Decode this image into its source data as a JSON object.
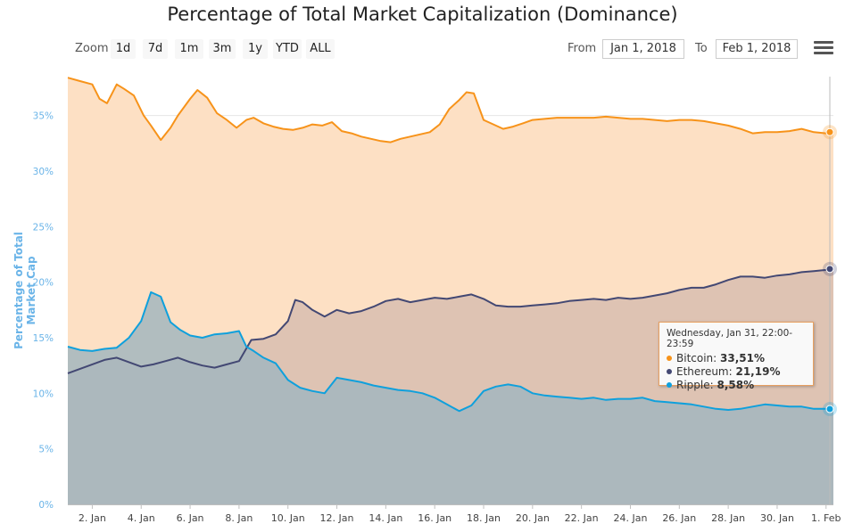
{
  "title": "Percentage of Total Market Capitalization (Dominance)",
  "zoom": {
    "label": "Zoom",
    "buttons": [
      "1d",
      "7d",
      "1m",
      "3m",
      "1y",
      "YTD",
      "ALL"
    ]
  },
  "range": {
    "from_label": "From",
    "from_value": "Jan 1, 2018",
    "to_label": "To",
    "to_value": "Feb 1, 2018"
  },
  "menu_icon": "hamburger-menu-icon",
  "tooltip": {
    "title": "Wednesday, Jan 31, 22:00-23:59",
    "rows": [
      {
        "name": "Bitcoin",
        "value": "33,51%"
      },
      {
        "name": "Ethereum",
        "value": "21,19%"
      },
      {
        "name": "Ripple",
        "value": "8,58%"
      }
    ]
  },
  "colors": {
    "bitcoin": "#f7931a",
    "ethereum": "#434873",
    "ripple": "#0fa0dc",
    "bitcoin_fill": "#fde0c4",
    "ethereum_fill": "#d8bdb0",
    "ripple_fill": "#a3b6be"
  },
  "chart_data": {
    "type": "area",
    "title": "Percentage of Total Market Capitalization (Dominance)",
    "ylabel": "Percentage of Total Market Cap",
    "xlabel": "",
    "ylim": [
      0,
      38.5
    ],
    "xlim": [
      1,
      32.3
    ],
    "yticks": [
      0,
      5,
      10,
      15,
      20,
      25,
      30,
      35
    ],
    "ytick_labels": [
      "0%",
      "5%",
      "10%",
      "15%",
      "20%",
      "25%",
      "30%",
      "35%"
    ],
    "xticks": [
      2,
      4,
      6,
      8,
      10,
      12,
      14,
      16,
      18,
      20,
      22,
      24,
      26,
      28,
      30,
      32
    ],
    "xtick_labels": [
      "2. Jan",
      "4. Jan",
      "6. Jan",
      "8. Jan",
      "10. Jan",
      "12. Jan",
      "14. Jan",
      "16. Jan",
      "18. Jan",
      "20. Jan",
      "22. Jan",
      "24. Jan",
      "26. Jan",
      "28. Jan",
      "30. Jan",
      "1. Feb"
    ],
    "grid": true,
    "legend": "none",
    "series": [
      {
        "name": "Bitcoin",
        "x": [
          1,
          1.5,
          2,
          2.3,
          2.6,
          3,
          3.3,
          3.7,
          4.1,
          4.4,
          4.8,
          5.2,
          5.5,
          6,
          6.3,
          6.7,
          7.1,
          7.5,
          7.9,
          8.3,
          8.6,
          9,
          9.4,
          9.8,
          10.2,
          10.6,
          11,
          11.4,
          11.8,
          12.2,
          12.6,
          13,
          13.4,
          13.8,
          14.2,
          14.6,
          15,
          15.4,
          15.8,
          16.2,
          16.6,
          17,
          17.3,
          17.6,
          18,
          18.4,
          18.8,
          19.2,
          19.6,
          20,
          20.5,
          21,
          21.5,
          22,
          22.5,
          23,
          23.5,
          24,
          24.5,
          25,
          25.5,
          26,
          26.5,
          27,
          27.5,
          28,
          28.5,
          29,
          29.5,
          30,
          30.5,
          31,
          31.5,
          32,
          32.3
        ],
        "y": [
          38.4,
          38.1,
          37.8,
          36.5,
          36.1,
          37.8,
          37.4,
          36.8,
          35.0,
          34.1,
          32.8,
          33.9,
          35.0,
          36.5,
          37.3,
          36.6,
          35.2,
          34.6,
          33.9,
          34.6,
          34.8,
          34.3,
          34.0,
          33.8,
          33.7,
          33.9,
          34.2,
          34.1,
          34.4,
          33.6,
          33.4,
          33.1,
          32.9,
          32.7,
          32.6,
          32.9,
          33.1,
          33.3,
          33.5,
          34.2,
          35.6,
          36.4,
          37.1,
          37.0,
          34.6,
          34.2,
          33.8,
          34.0,
          34.3,
          34.6,
          34.7,
          34.8,
          34.8,
          34.8,
          34.8,
          34.9,
          34.8,
          34.7,
          34.7,
          34.6,
          34.5,
          34.6,
          34.6,
          34.5,
          34.3,
          34.1,
          33.8,
          33.4,
          33.5,
          33.5,
          33.6,
          33.8,
          33.5,
          33.4,
          33.51
        ]
      },
      {
        "name": "Ethereum",
        "x": [
          1,
          1.5,
          2,
          2.5,
          3,
          3.5,
          4,
          4.5,
          5,
          5.5,
          6,
          6.5,
          7,
          7.5,
          8,
          8.5,
          9,
          9.5,
          10,
          10.3,
          10.6,
          11,
          11.5,
          12,
          12.5,
          13,
          13.5,
          14,
          14.5,
          15,
          15.5,
          16,
          16.5,
          17,
          17.5,
          18,
          18.5,
          19,
          19.5,
          20,
          20.5,
          21,
          21.5,
          22,
          22.5,
          23,
          23.5,
          24,
          24.5,
          25,
          25.5,
          26,
          26.5,
          27,
          27.5,
          28,
          28.5,
          29,
          29.5,
          30,
          30.5,
          31,
          31.5,
          32,
          32.3
        ],
        "y": [
          11.8,
          12.2,
          12.6,
          13.0,
          13.2,
          12.8,
          12.4,
          12.6,
          12.9,
          13.2,
          12.8,
          12.5,
          12.3,
          12.6,
          12.9,
          14.8,
          14.9,
          15.3,
          16.5,
          18.4,
          18.2,
          17.5,
          16.9,
          17.5,
          17.2,
          17.4,
          17.8,
          18.3,
          18.5,
          18.2,
          18.4,
          18.6,
          18.5,
          18.7,
          18.9,
          18.5,
          17.9,
          17.8,
          17.8,
          17.9,
          18.0,
          18.1,
          18.3,
          18.4,
          18.5,
          18.4,
          18.6,
          18.5,
          18.6,
          18.8,
          19.0,
          19.3,
          19.5,
          19.5,
          19.8,
          20.2,
          20.5,
          20.5,
          20.4,
          20.6,
          20.7,
          20.9,
          21.0,
          21.1,
          21.19
        ]
      },
      {
        "name": "Ripple",
        "x": [
          1,
          1.5,
          2,
          2.5,
          3,
          3.5,
          4,
          4.4,
          4.8,
          5.2,
          5.6,
          6,
          6.5,
          7,
          7.5,
          8,
          8.3,
          8.6,
          9,
          9.5,
          10,
          10.5,
          11,
          11.5,
          12,
          12.5,
          13,
          13.5,
          14,
          14.5,
          15,
          15.5,
          16,
          16.5,
          17,
          17.5,
          18,
          18.5,
          19,
          19.5,
          20,
          20.5,
          21,
          21.5,
          22,
          22.5,
          23,
          23.5,
          24,
          24.5,
          25,
          25.5,
          26,
          26.5,
          27,
          27.5,
          28,
          28.5,
          29,
          29.5,
          30,
          30.5,
          31,
          31.5,
          32,
          32.3
        ],
        "y": [
          14.2,
          13.9,
          13.8,
          14.0,
          14.1,
          15.0,
          16.5,
          19.1,
          18.7,
          16.4,
          15.7,
          15.2,
          15.0,
          15.3,
          15.4,
          15.6,
          14.2,
          13.8,
          13.2,
          12.7,
          11.2,
          10.5,
          10.2,
          10.0,
          11.4,
          11.2,
          11.0,
          10.7,
          10.5,
          10.3,
          10.2,
          10.0,
          9.6,
          9.0,
          8.4,
          8.9,
          10.2,
          10.6,
          10.8,
          10.6,
          10.0,
          9.8,
          9.7,
          9.6,
          9.5,
          9.6,
          9.4,
          9.5,
          9.5,
          9.6,
          9.3,
          9.2,
          9.1,
          9.0,
          8.8,
          8.6,
          8.5,
          8.6,
          8.8,
          9.0,
          8.9,
          8.8,
          8.8,
          8.6,
          8.6,
          8.58
        ]
      }
    ]
  }
}
